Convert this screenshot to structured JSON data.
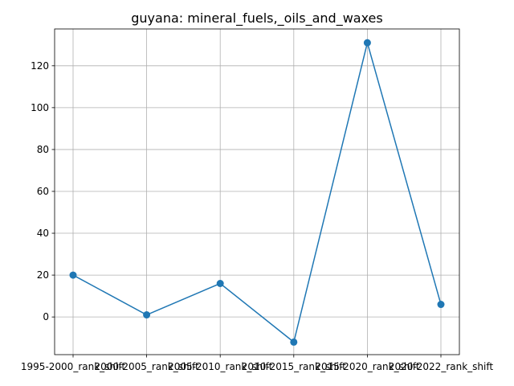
{
  "chart_data": {
    "type": "line",
    "title": "guyana: mineral_fuels,_oils_and_waxes",
    "xlabel": "",
    "ylabel": "",
    "categories": [
      "1995-2000_rank_shift",
      "2000-2005_rank_shift",
      "2005-2010_rank_shift",
      "2010-2015_rank_shift",
      "2015-2020_rank_shift",
      "2020-2022_rank_shift"
    ],
    "series": [
      {
        "values": [
          20,
          1,
          16,
          -12,
          131,
          6
        ]
      }
    ],
    "ylim": [
      -18,
      137.6
    ],
    "yticks": [
      0,
      20,
      40,
      60,
      80,
      100,
      120
    ],
    "grid": true,
    "marker": "circle",
    "line_color": "#1f77b4"
  }
}
